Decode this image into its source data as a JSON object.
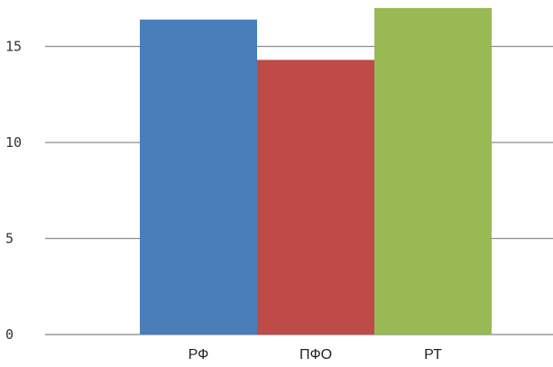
{
  "chart_data": {
    "type": "bar",
    "categories": [
      "РФ",
      "ПФО",
      "РТ"
    ],
    "values": [
      16.4,
      14.3,
      17.0
    ],
    "colors": [
      "#4a7ebb",
      "#be4b48",
      "#98b954"
    ],
    "yticks": [
      0,
      5,
      10,
      15
    ],
    "ylim": [
      0,
      17
    ],
    "grid": true,
    "legend": "none"
  }
}
